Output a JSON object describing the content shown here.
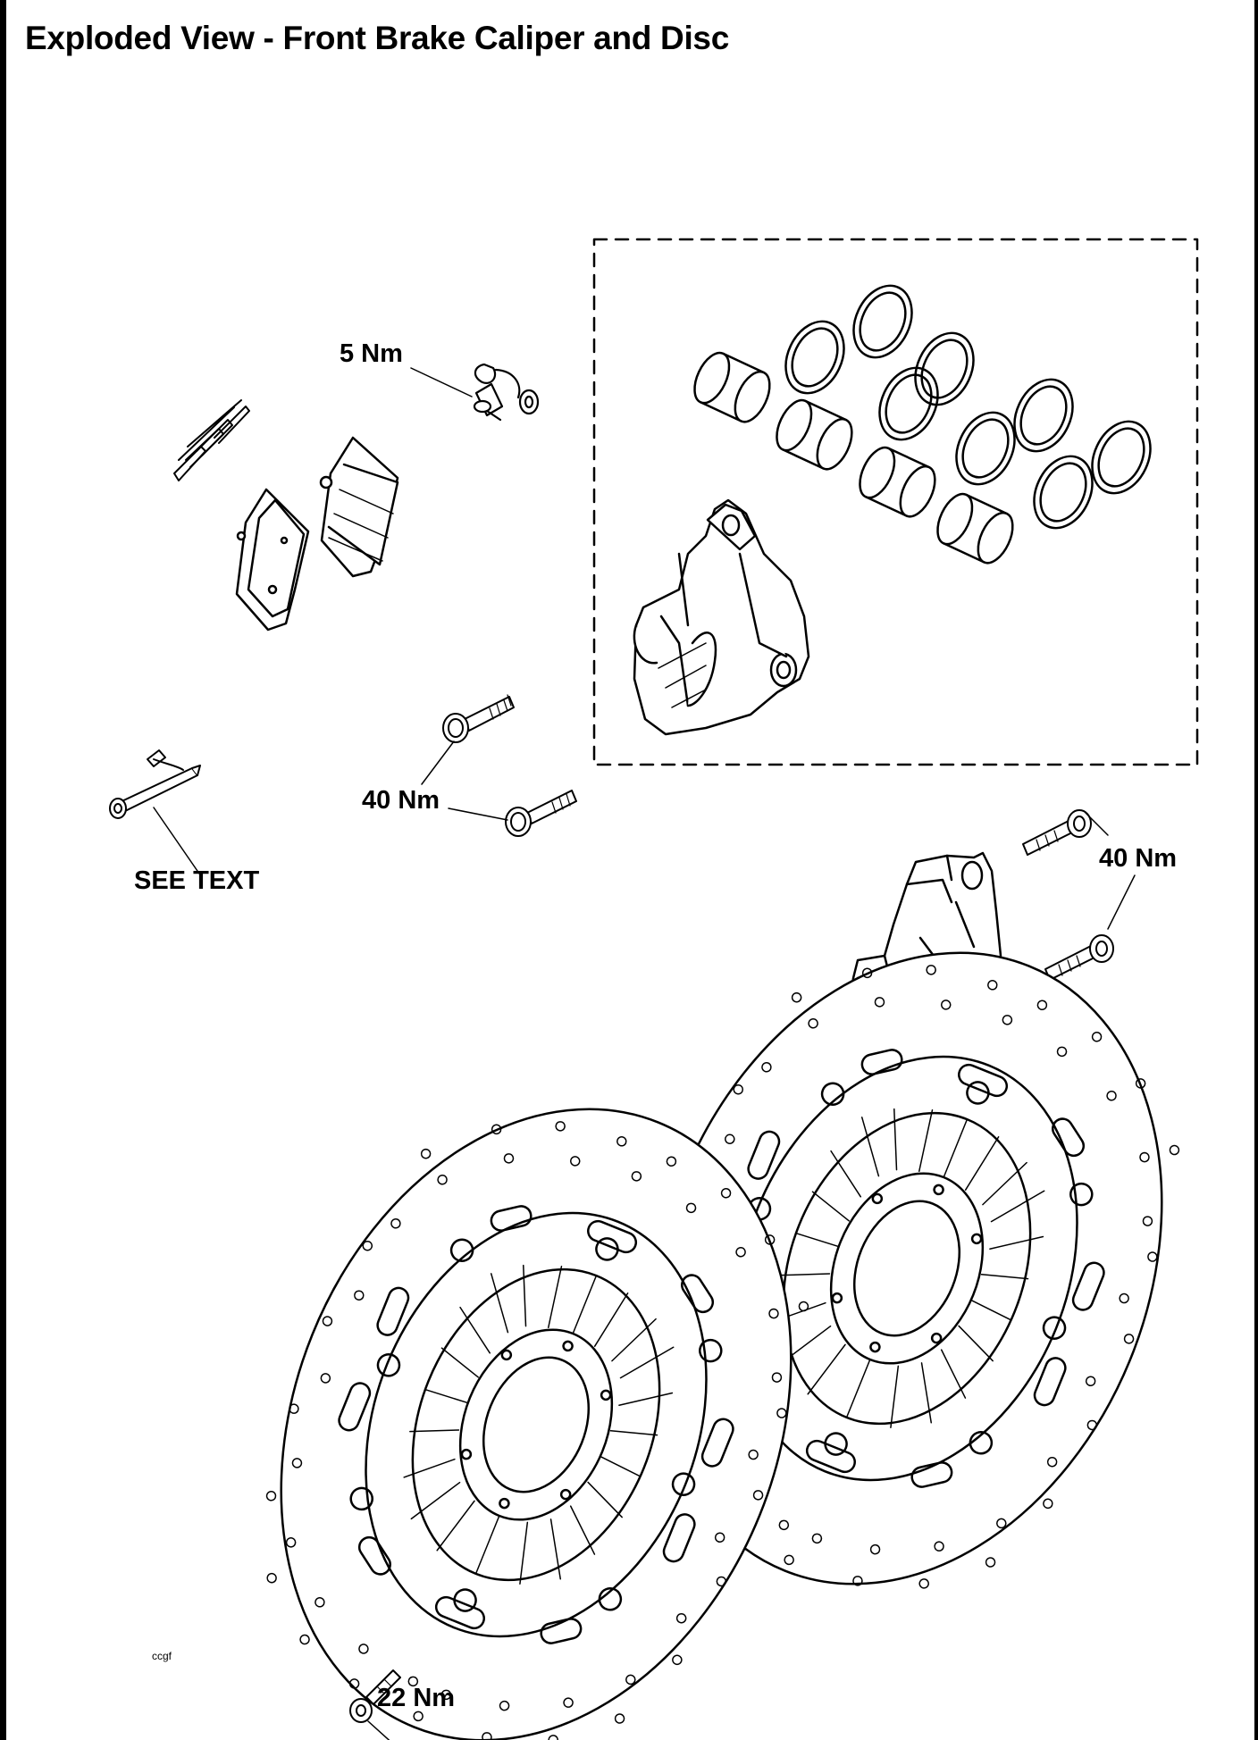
{
  "title": "Exploded View - Front Brake Caliper and Disc",
  "labels": {
    "bleed_valve_torque": "5 Nm",
    "left_caliper_bolt_torque": "40 Nm",
    "right_caliper_bolt_torque": "40 Nm",
    "pad_pin_note": "SEE TEXT",
    "disc_bolt_torque": "22 Nm"
  },
  "reference_code": "ccgf"
}
